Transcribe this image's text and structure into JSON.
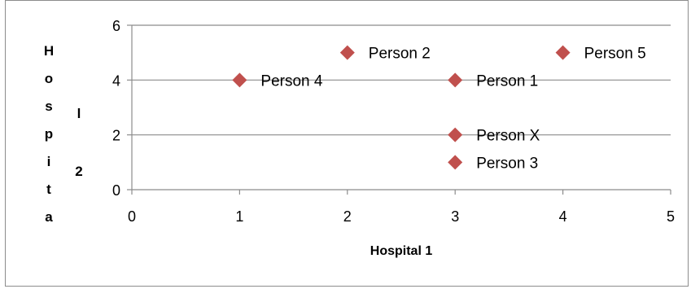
{
  "chart_data": {
    "type": "scatter",
    "title": "",
    "xlabel": "Hospital 1",
    "ylabel": "Hospital 2",
    "xlim": [
      0,
      5
    ],
    "ylim": [
      0,
      6
    ],
    "x_ticks": [
      0,
      1,
      2,
      3,
      4,
      5
    ],
    "y_ticks": [
      0,
      2,
      4,
      6
    ],
    "grid": "horizontal",
    "legend": "none",
    "marker": "diamond",
    "marker_color": "#c0504d",
    "points": [
      {
        "label": "Person 1",
        "x": 3,
        "y": 4
      },
      {
        "label": "Person 2",
        "x": 2,
        "y": 5
      },
      {
        "label": "Person 3",
        "x": 3,
        "y": 1
      },
      {
        "label": "Person 4",
        "x": 1,
        "y": 4
      },
      {
        "label": "Person 5",
        "x": 4,
        "y": 5
      },
      {
        "label": "Person X",
        "x": 3,
        "y": 2
      }
    ]
  }
}
